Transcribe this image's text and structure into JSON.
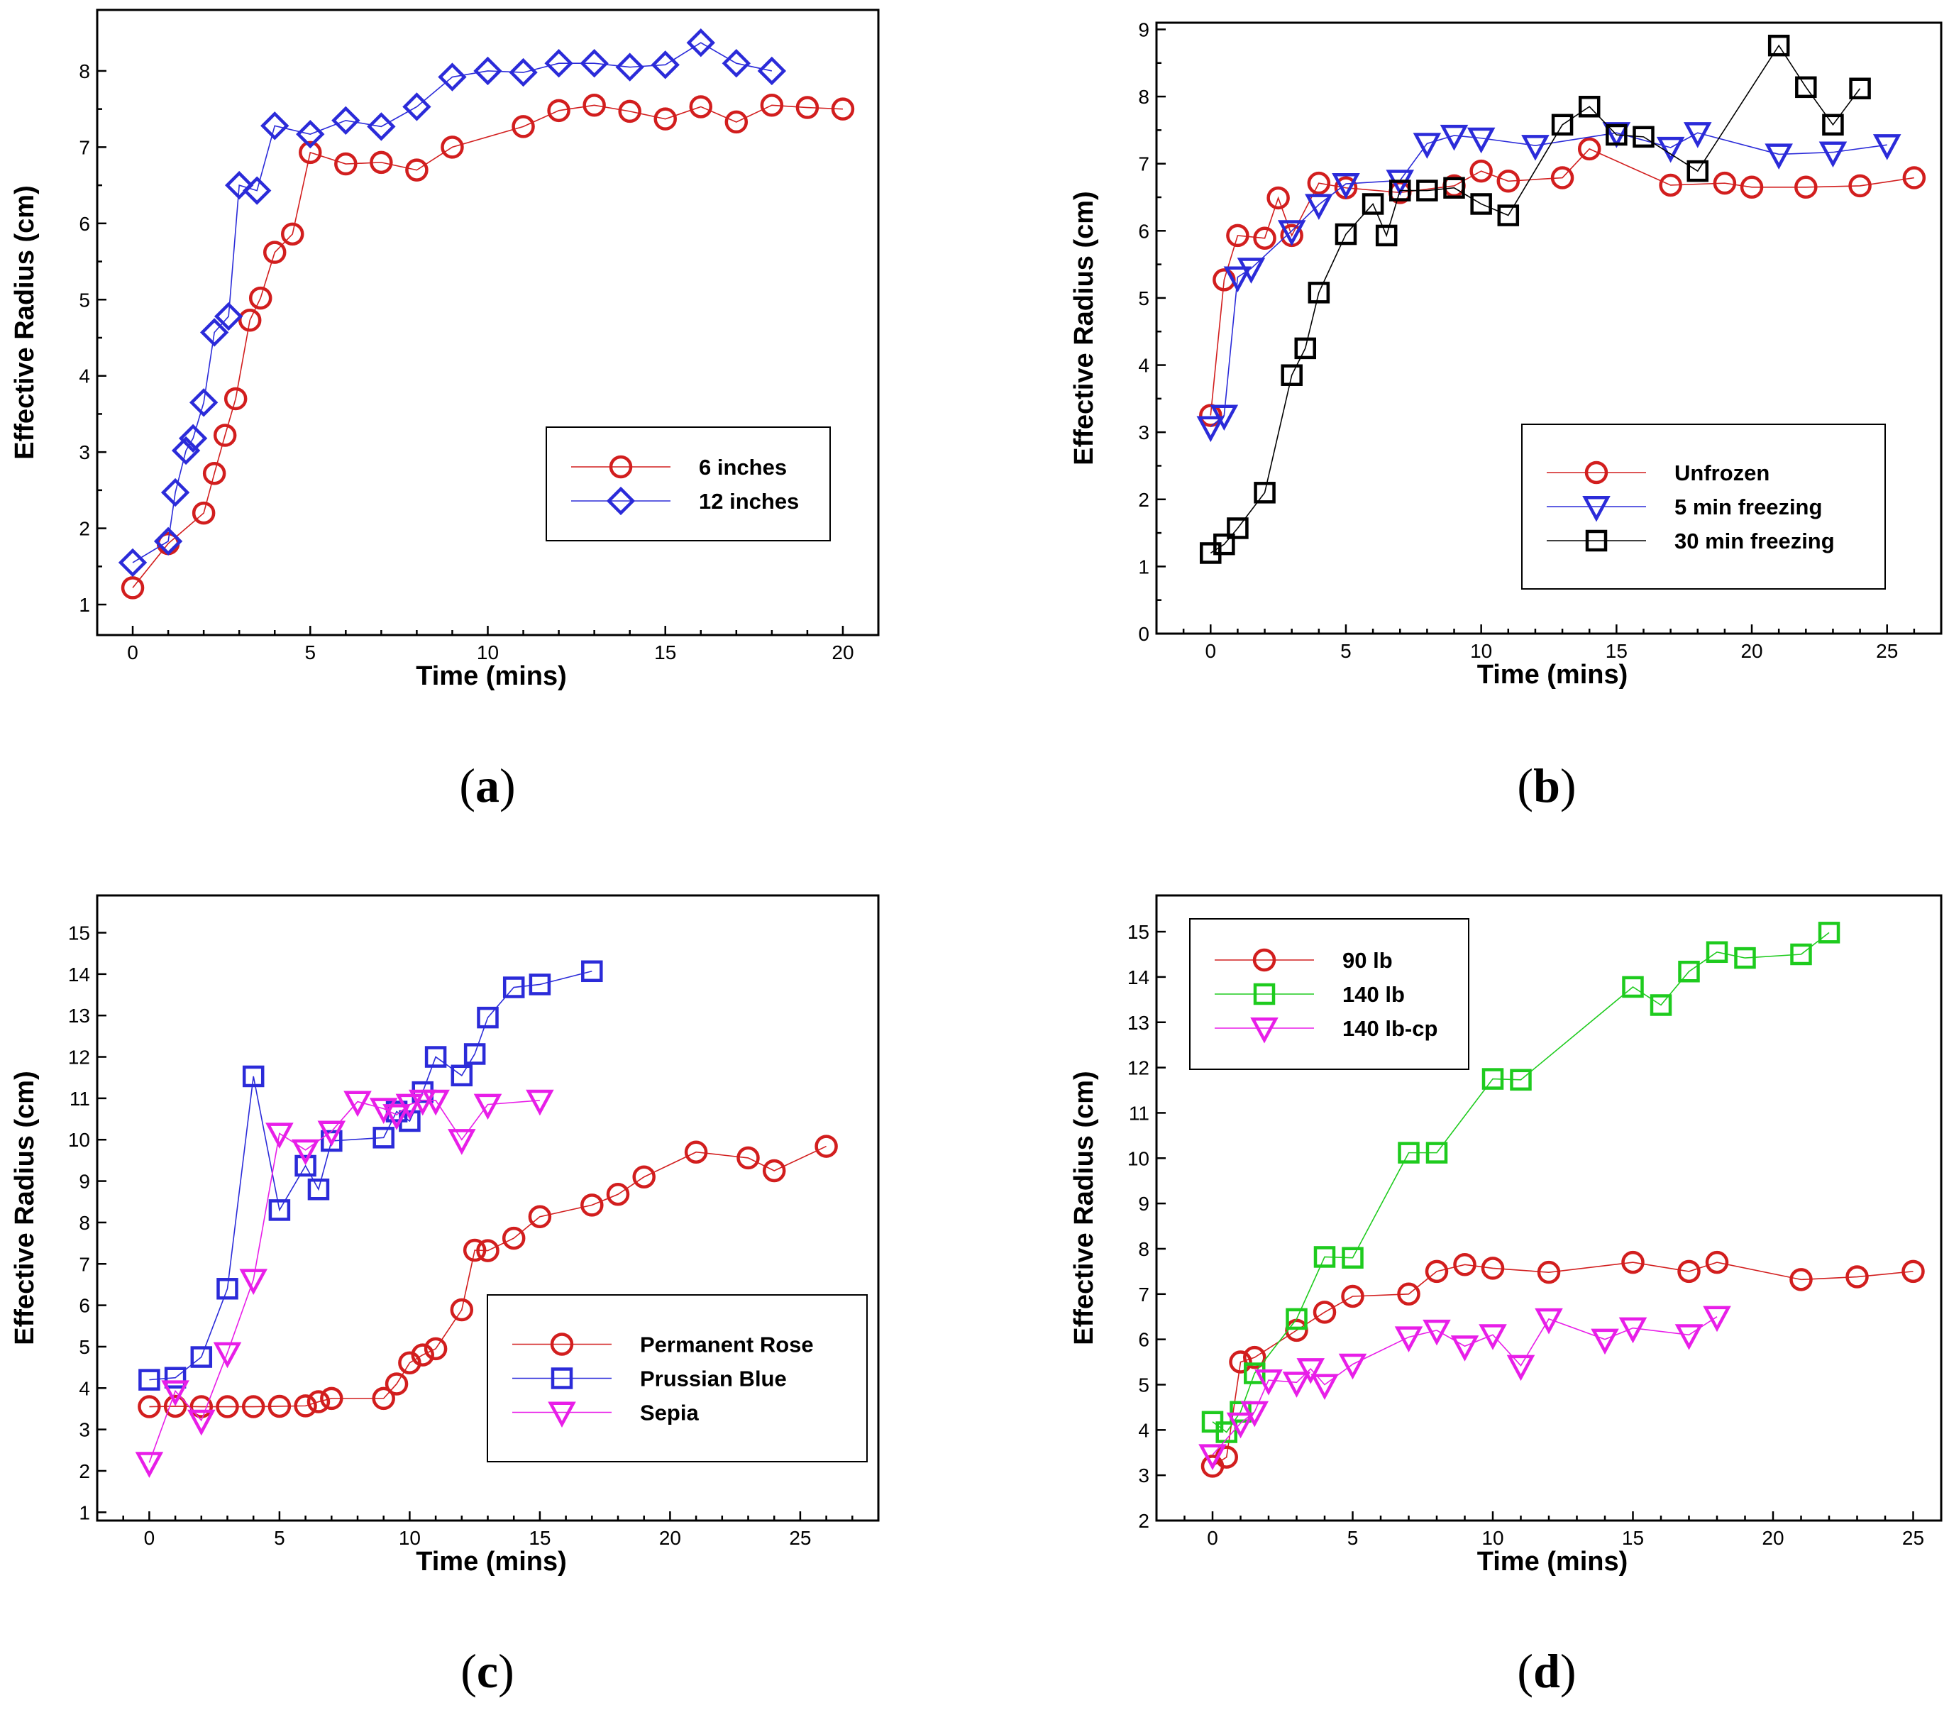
{
  "chart_data": [
    {
      "type": "line",
      "panel_label": "a",
      "xlabel": "Time (mins)",
      "ylabel": "Effective Radius (cm)",
      "xlim": [
        -1,
        21
      ],
      "ylim": [
        0.6,
        8.8
      ],
      "xticks": [
        0,
        5,
        10,
        15,
        20
      ],
      "yticks": [
        1,
        2,
        3,
        4,
        5,
        6,
        7,
        8
      ],
      "legend": "center-right",
      "series": [
        {
          "name": "6 inches",
          "color": "#d21e1e",
          "marker": "circle",
          "x": [
            0,
            1,
            2,
            2.3,
            2.6,
            2.9,
            3.3,
            3.6,
            4,
            4.5,
            5,
            6,
            7,
            8,
            9,
            11,
            12,
            13,
            14,
            15,
            16,
            17,
            18,
            19,
            20
          ],
          "y": [
            1.22,
            1.8,
            2.2,
            2.72,
            3.22,
            3.7,
            4.73,
            5.02,
            5.62,
            5.86,
            6.93,
            6.78,
            6.8,
            6.7,
            7.0,
            7.27,
            7.48,
            7.55,
            7.47,
            7.37,
            7.53,
            7.33,
            7.55,
            7.52,
            7.5
          ]
        },
        {
          "name": "12 inches",
          "color": "#2b2bd9",
          "marker": "diamond",
          "x": [
            0,
            1,
            1.2,
            1.5,
            1.7,
            2,
            2.3,
            2.7,
            3,
            3.5,
            4,
            5,
            6,
            7,
            8,
            9,
            10,
            11,
            12,
            13,
            14,
            15,
            16,
            17,
            18
          ],
          "y": [
            1.55,
            1.83,
            2.47,
            3.02,
            3.18,
            3.65,
            4.57,
            4.78,
            6.5,
            6.43,
            7.28,
            7.17,
            7.35,
            7.27,
            7.53,
            7.92,
            8.0,
            7.98,
            8.1,
            8.1,
            8.05,
            8.08,
            8.37,
            8.1,
            8.0
          ]
        }
      ]
    },
    {
      "type": "line",
      "panel_label": "b",
      "xlabel": "Time (mins)",
      "ylabel": "Effective Radius (cm)",
      "xlim": [
        -2,
        27
      ],
      "ylim": [
        0,
        9.1
      ],
      "xticks": [
        0,
        5,
        10,
        15,
        20,
        25
      ],
      "yticks": [
        0,
        1,
        2,
        3,
        4,
        5,
        6,
        7,
        8,
        9
      ],
      "legend": "lower-right",
      "series": [
        {
          "name": "Unfrozen",
          "color": "#d21e1e",
          "marker": "circle",
          "x": [
            0,
            0.5,
            1,
            2,
            2.5,
            3,
            4,
            5,
            7,
            9,
            10,
            11,
            13,
            14,
            17,
            19,
            20,
            22,
            24,
            26
          ],
          "y": [
            3.25,
            5.27,
            5.93,
            5.89,
            6.49,
            5.93,
            6.71,
            6.64,
            6.57,
            6.67,
            6.89,
            6.74,
            6.79,
            7.22,
            6.68,
            6.71,
            6.65,
            6.65,
            6.67,
            6.79
          ]
        },
        {
          "name": "5 min freezing",
          "color": "#2b2bd9",
          "marker": "triangle-down",
          "x": [
            0,
            0.5,
            1,
            1.5,
            3,
            4,
            5,
            7,
            8,
            9,
            10,
            12,
            15,
            17,
            18,
            21,
            23,
            25
          ],
          "y": [
            3.08,
            3.25,
            5.31,
            5.44,
            6.0,
            6.39,
            6.7,
            6.75,
            7.3,
            7.42,
            7.38,
            7.27,
            7.46,
            7.24,
            7.46,
            7.14,
            7.17,
            7.28
          ]
        },
        {
          "name": "30 min freezing",
          "color": "#000000",
          "marker": "square",
          "x": [
            0,
            0.5,
            1,
            2,
            3,
            3.5,
            4,
            5,
            6,
            6.5,
            7,
            8,
            9,
            10,
            11,
            13,
            14,
            15,
            16,
            18,
            21,
            22,
            23,
            24
          ],
          "y": [
            1.2,
            1.33,
            1.57,
            2.1,
            3.85,
            4.25,
            5.08,
            5.95,
            6.4,
            5.93,
            6.6,
            6.6,
            6.64,
            6.4,
            6.23,
            7.58,
            7.85,
            7.43,
            7.4,
            6.89,
            8.76,
            8.14,
            7.58,
            8.12
          ]
        }
      ]
    },
    {
      "type": "line",
      "panel_label": "c",
      "xlabel": "Time (mins)",
      "ylabel": "Effective Radius (cm)",
      "xlim": [
        -2,
        28
      ],
      "ylim": [
        0.8,
        15.9
      ],
      "xticks": [
        0,
        5,
        10,
        15,
        20,
        25
      ],
      "yticks": [
        1,
        2,
        3,
        4,
        5,
        6,
        7,
        8,
        9,
        10,
        11,
        12,
        13,
        14,
        15
      ],
      "legend": "lower-right",
      "series": [
        {
          "name": "Permanent Rose",
          "color": "#d21e1e",
          "marker": "circle",
          "x": [
            0,
            1,
            2,
            3,
            4,
            5,
            6,
            6.5,
            7,
            9,
            9.5,
            10,
            10.5,
            11,
            12,
            12.5,
            13,
            14,
            15,
            17,
            18,
            19,
            21,
            23,
            24,
            26
          ],
          "y": [
            3.55,
            3.56,
            3.55,
            3.55,
            3.55,
            3.56,
            3.57,
            3.67,
            3.75,
            3.75,
            4.1,
            4.61,
            4.8,
            4.95,
            5.89,
            7.33,
            7.32,
            7.62,
            8.14,
            8.42,
            8.68,
            9.1,
            9.7,
            9.56,
            9.25,
            9.84
          ]
        },
        {
          "name": "Prussian Blue",
          "color": "#2b2bd9",
          "marker": "square",
          "x": [
            0,
            1,
            2,
            3,
            4,
            5,
            6,
            6.5,
            7,
            9,
            9.5,
            10,
            10.5,
            11,
            12,
            12.5,
            13,
            14,
            15,
            17
          ],
          "y": [
            4.2,
            4.25,
            4.75,
            6.4,
            11.53,
            8.3,
            9.37,
            8.8,
            9.97,
            10.05,
            10.68,
            10.45,
            11.15,
            12.0,
            11.55,
            12.07,
            12.95,
            13.68,
            13.75,
            14.07
          ]
        },
        {
          "name": "Sepia",
          "color": "#e81ee8",
          "marker": "triangle-down",
          "x": [
            0,
            1,
            2,
            3,
            4,
            5,
            6,
            7,
            8,
            9,
            9.5,
            10,
            10.5,
            11,
            12,
            13,
            15
          ],
          "y": [
            2.2,
            3.93,
            3.22,
            4.85,
            6.62,
            10.15,
            9.75,
            10.2,
            10.92,
            10.75,
            10.6,
            10.85,
            10.95,
            10.95,
            10.0,
            10.85,
            10.95
          ]
        }
      ]
    },
    {
      "type": "line",
      "panel_label": "d",
      "xlabel": "Time (mins)",
      "ylabel": "Effective Radius (cm)",
      "xlim": [
        -2,
        26
      ],
      "ylim": [
        2,
        15.8
      ],
      "xticks": [
        0,
        5,
        10,
        15,
        20,
        25
      ],
      "yticks": [
        2,
        3,
        4,
        5,
        6,
        7,
        8,
        9,
        10,
        11,
        12,
        13,
        14,
        15
      ],
      "legend": "top-left",
      "series": [
        {
          "name": "90 lb",
          "color": "#d21e1e",
          "marker": "circle",
          "x": [
            0,
            0.5,
            1,
            1.5,
            3,
            4,
            5,
            7,
            8,
            9,
            10,
            12,
            15,
            17,
            18,
            21,
            23,
            25
          ],
          "y": [
            3.2,
            3.4,
            5.5,
            5.6,
            6.2,
            6.6,
            6.95,
            7.0,
            7.5,
            7.65,
            7.57,
            7.48,
            7.7,
            7.5,
            7.7,
            7.32,
            7.38,
            7.5
          ]
        },
        {
          "name": "140 lb",
          "color": "#1ecb1e",
          "marker": "square",
          "x": [
            0,
            0.5,
            1,
            1.5,
            3,
            4,
            5,
            7,
            8,
            10,
            11,
            15,
            16,
            17,
            18,
            19,
            21,
            22
          ],
          "y": [
            4.18,
            3.95,
            4.4,
            5.25,
            6.45,
            7.82,
            7.8,
            10.12,
            10.12,
            11.75,
            11.73,
            13.78,
            13.38,
            14.12,
            14.55,
            14.42,
            14.5,
            14.98
          ]
        },
        {
          "name": "140 lb-cp",
          "color": "#e81ee8",
          "marker": "triangle-down",
          "x": [
            0,
            1,
            1.5,
            2,
            3,
            3.5,
            4,
            5,
            7,
            8,
            9,
            10,
            11,
            12,
            14,
            15,
            17,
            18
          ],
          "y": [
            3.45,
            4.15,
            4.4,
            5.1,
            5.05,
            5.35,
            5.0,
            5.45,
            6.05,
            6.2,
            5.85,
            6.1,
            5.42,
            6.45,
            6.0,
            6.25,
            6.1,
            6.5
          ]
        }
      ]
    }
  ]
}
